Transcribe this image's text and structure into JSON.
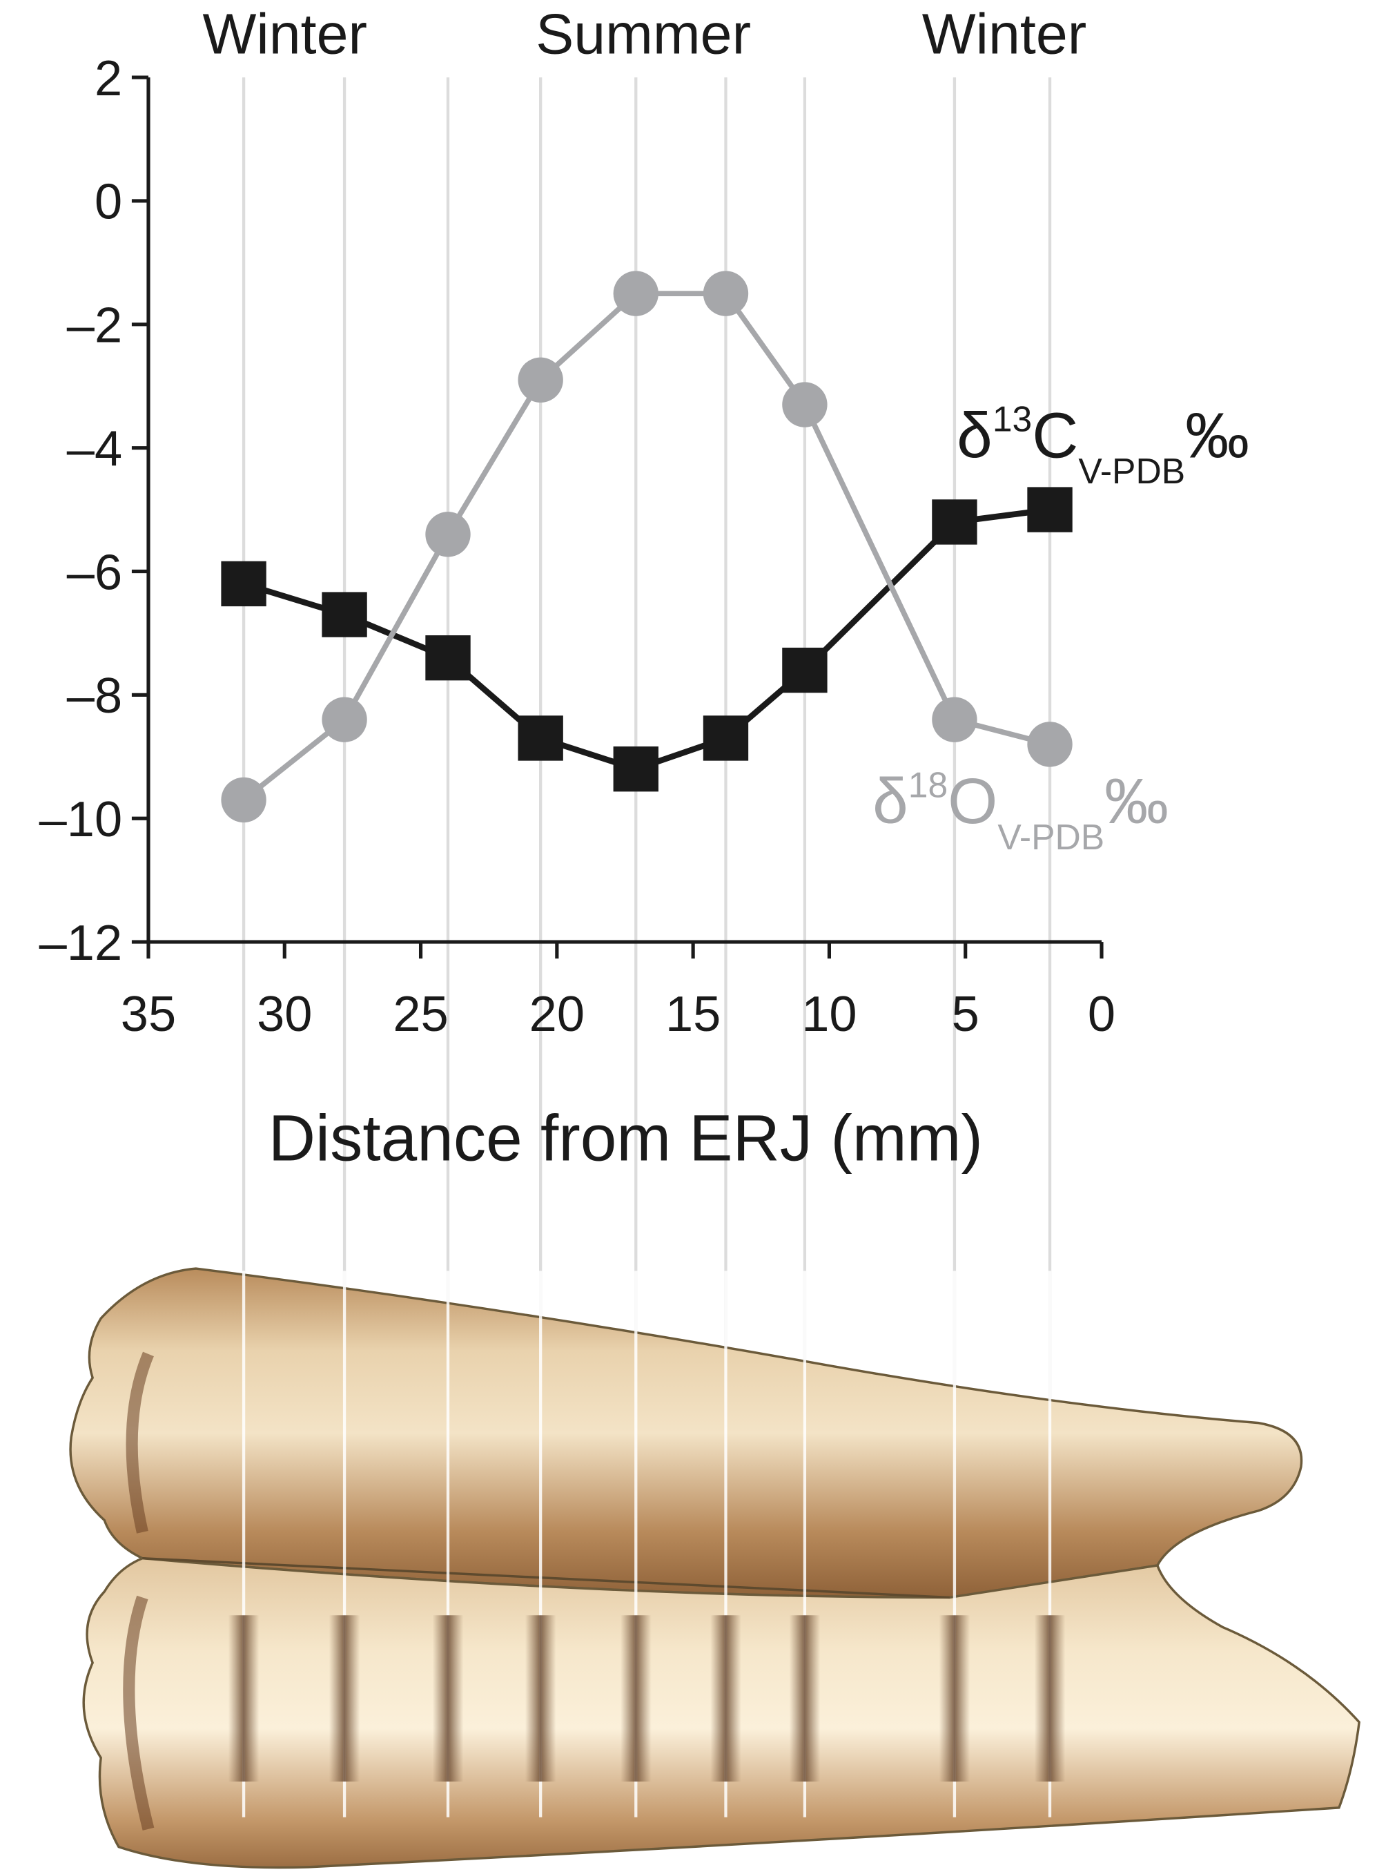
{
  "chart_data": {
    "type": "line",
    "annotations": [
      "Winter",
      "Summer",
      "Winter"
    ],
    "xlabel": "Distance from ERJ (mm)",
    "x": [
      31.5,
      27.8,
      24.0,
      20.6,
      17.1,
      13.8,
      10.9,
      5.4,
      1.9
    ],
    "series": [
      {
        "label_parts": [
          "δ",
          "13",
          "C",
          "V-PDB",
          "‰"
        ],
        "color": "#1a1a1a",
        "marker": "square",
        "values": [
          -6.2,
          -6.7,
          -7.4,
          -8.7,
          -9.2,
          -8.7,
          -7.6,
          -5.2,
          -5.0
        ]
      },
      {
        "label_parts": [
          "δ",
          "18",
          "O",
          "V-PDB",
          "‰"
        ],
        "color": "#a6a7aa",
        "marker": "circle",
        "values": [
          -9.7,
          -8.4,
          -5.4,
          -2.9,
          -1.5,
          -1.5,
          -3.3,
          -8.4,
          -8.8
        ]
      }
    ],
    "xlim": [
      35,
      0
    ],
    "xticks": [
      35,
      30,
      25,
      20,
      15,
      10,
      5,
      0
    ],
    "ylim": [
      -12,
      2
    ],
    "yticks": [
      2,
      0,
      {
        "value": -2,
        "label": "–2"
      },
      {
        "value": -4,
        "label": "–4"
      },
      {
        "value": -6,
        "label": "–6"
      },
      {
        "value": -8,
        "label": "–8"
      },
      {
        "value": -10,
        "label": "–10"
      },
      {
        "value": -12,
        "label": "–12"
      }
    ]
  }
}
